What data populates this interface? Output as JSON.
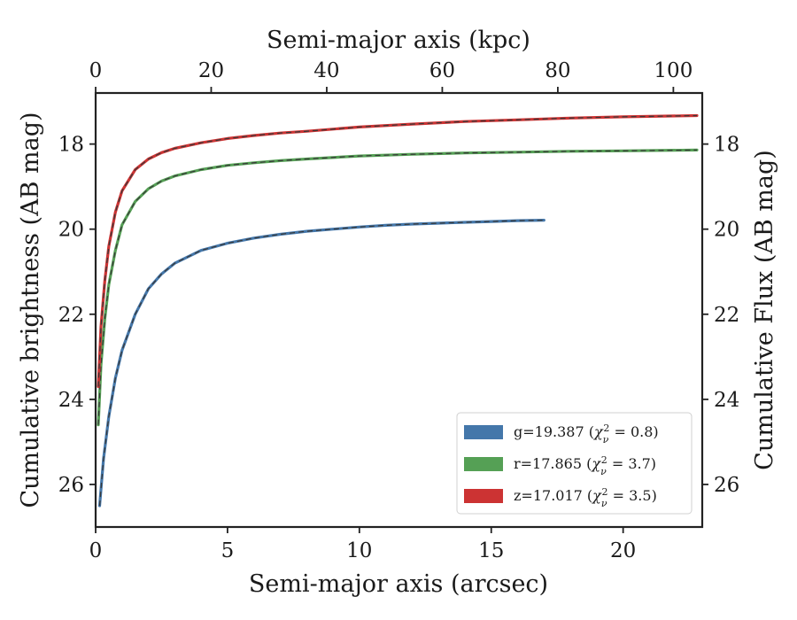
{
  "chart_data": {
    "type": "line",
    "title": "",
    "xlabel": "Semi-major axis (arcsec)",
    "xlabel_top": "Semi-major axis (kpc)",
    "ylabel": "Cumulative brightness (AB mag)",
    "ylabel_right": "Cumulative Flux (AB mag)",
    "xlim": [
      0,
      23
    ],
    "xlim_top": [
      0,
      105
    ],
    "ylim": [
      27,
      16.8
    ],
    "y_inverted": true,
    "xticks": [
      0,
      5,
      10,
      15,
      20
    ],
    "xticks_top": [
      0,
      20,
      40,
      60,
      80,
      100
    ],
    "yticks": [
      18,
      20,
      22,
      24,
      26
    ],
    "grid": false,
    "legend_position": "lower-right",
    "series": [
      {
        "name": "g=19.387",
        "legend_chi": "0.8",
        "color": "#4477aa",
        "x": [
          0.15,
          0.3,
          0.5,
          0.75,
          1.0,
          1.5,
          2.0,
          2.5,
          3.0,
          4.0,
          5.0,
          6.0,
          7.0,
          8.0,
          9.0,
          10.0,
          11.0,
          12.0,
          13.0,
          14.0,
          15.0,
          16.0,
          17.0
        ],
        "y": [
          26.5,
          25.4,
          24.4,
          23.5,
          22.85,
          22.0,
          21.4,
          21.05,
          20.8,
          20.5,
          20.33,
          20.21,
          20.12,
          20.05,
          20.0,
          19.95,
          19.91,
          19.88,
          19.86,
          19.84,
          19.82,
          19.8,
          19.79
        ]
      },
      {
        "name": "r=17.865",
        "legend_chi": "3.7",
        "color": "#55a055",
        "x": [
          0.1,
          0.2,
          0.35,
          0.5,
          0.75,
          1.0,
          1.5,
          2.0,
          2.5,
          3.0,
          4.0,
          5.0,
          6.0,
          7.0,
          8.0,
          10.0,
          12.0,
          14.0,
          16.0,
          18.0,
          20.0,
          22.8
        ],
        "y": [
          24.6,
          23.2,
          22.1,
          21.3,
          20.5,
          19.9,
          19.35,
          19.05,
          18.87,
          18.75,
          18.6,
          18.5,
          18.44,
          18.39,
          18.35,
          18.28,
          18.24,
          18.21,
          18.19,
          18.17,
          18.16,
          18.14
        ]
      },
      {
        "name": "z=17.017",
        "legend_chi": "3.5",
        "color": "#cc3333",
        "x": [
          0.1,
          0.2,
          0.35,
          0.5,
          0.75,
          1.0,
          1.5,
          2.0,
          2.5,
          3.0,
          4.0,
          5.0,
          6.0,
          7.0,
          8.0,
          10.0,
          12.0,
          14.0,
          16.0,
          18.0,
          20.0,
          22.8
        ],
        "y": [
          23.7,
          22.3,
          21.2,
          20.4,
          19.6,
          19.1,
          18.6,
          18.35,
          18.2,
          18.1,
          17.97,
          17.87,
          17.8,
          17.74,
          17.7,
          17.6,
          17.53,
          17.47,
          17.43,
          17.39,
          17.36,
          17.33
        ]
      }
    ]
  }
}
